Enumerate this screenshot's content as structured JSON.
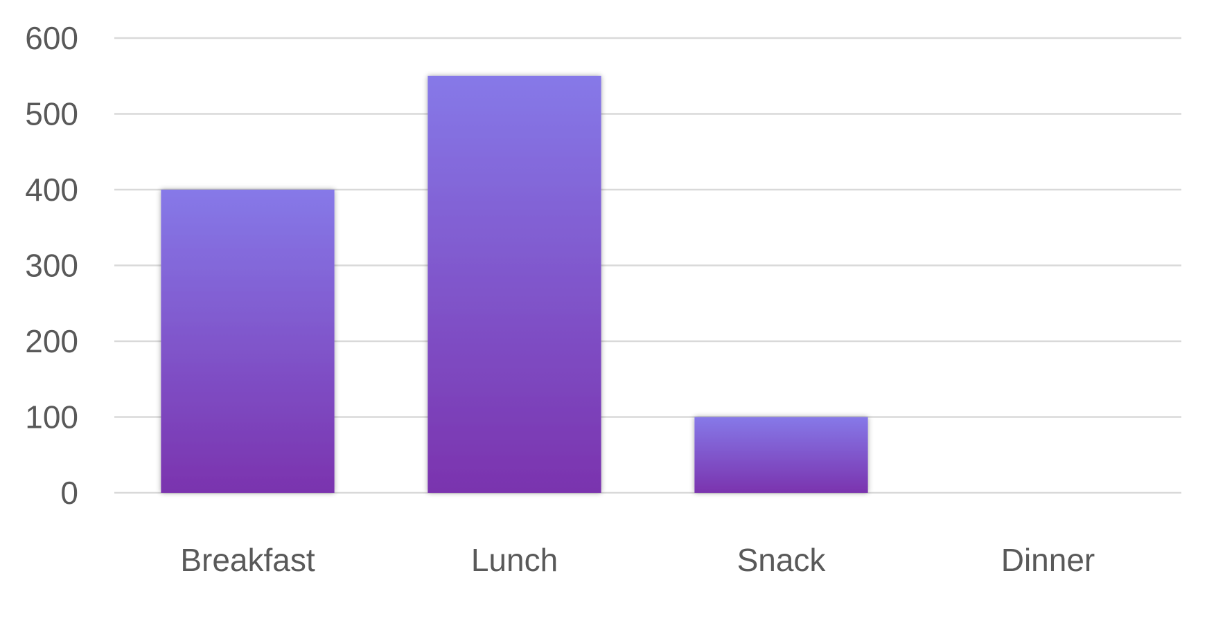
{
  "chart_data": {
    "type": "bar",
    "categories": [
      "Breakfast",
      "Lunch",
      "Snack",
      "Dinner"
    ],
    "values": [
      400,
      550,
      100,
      0
    ],
    "title": "",
    "xlabel": "",
    "ylabel": "",
    "ylim": [
      0,
      600
    ],
    "yticks": [
      0,
      100,
      200,
      300,
      400,
      500,
      600
    ],
    "grid": true,
    "legend": "none"
  },
  "colors": {
    "bar_top": "#8679E8",
    "bar_bottom": "#7A33AE",
    "grid": "#D9D9D9",
    "text": "#595959"
  }
}
